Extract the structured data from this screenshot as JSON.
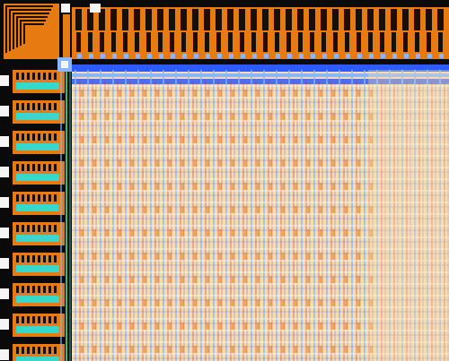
{
  "view": {
    "kind": "ic-layout-corner",
    "colors": {
      "background": "#0a0a0a",
      "pad_orange": "#e87a12",
      "pad_dark": "#1a0f06",
      "core_fill": "#f6dcae",
      "metal_blue": "#2d5bff",
      "metal_light_blue": "#8ab6ff",
      "via_cyan": "#25e0e0",
      "red_trace": "#d23a3a",
      "violet": "#7a63c9",
      "green": "#3bd16a",
      "white_grid": "#f5f5f5"
    }
  }
}
